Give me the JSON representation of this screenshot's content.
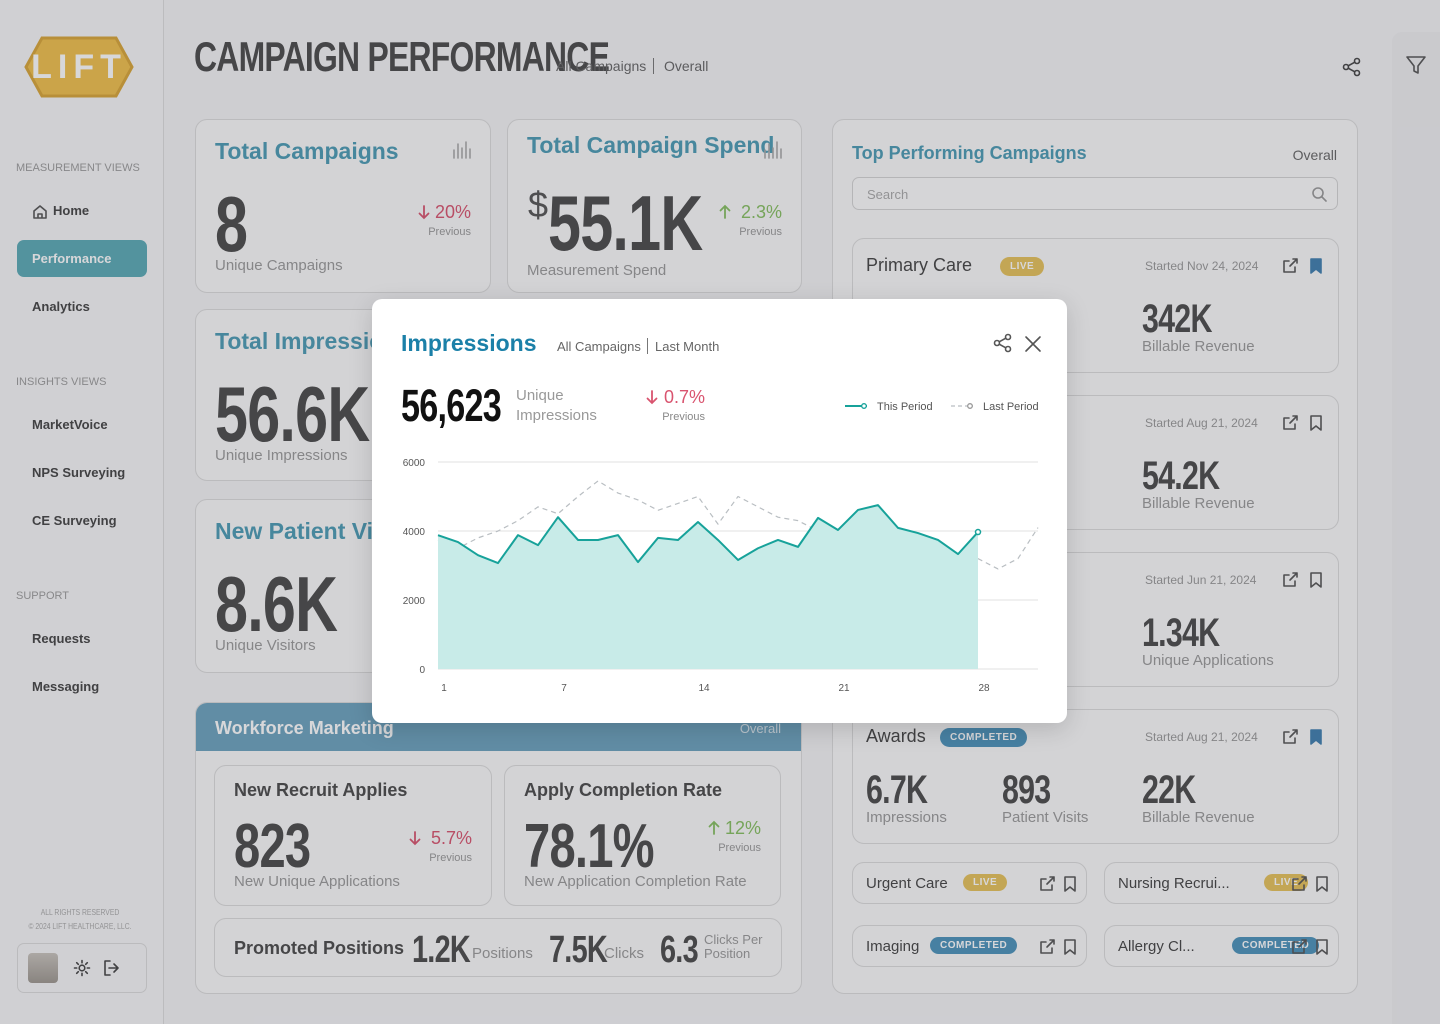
{
  "sidebar": {
    "logo": "LIFT",
    "sections": [
      {
        "title": "MEASUREMENT VIEWS",
        "items": [
          "Home",
          "Performance",
          "Analytics"
        ]
      },
      {
        "title": "INSIGHTS VIEWS",
        "items": [
          "MarketVoice",
          "NPS Surveying",
          "CE Surveying"
        ]
      },
      {
        "title": "SUPPORT",
        "items": [
          "Requests",
          "Messaging"
        ]
      }
    ],
    "active": "Performance",
    "footer": [
      "ALL RIGHTS RESERVED",
      "© 2024 LIFT HEALTHCARE, LLC."
    ]
  },
  "header": {
    "title": "CAMPAIGN PERFORMANCE",
    "filters": [
      "All Campaigns",
      "Overall"
    ]
  },
  "kpis": [
    {
      "title": "Total Campaigns",
      "value": "8",
      "caption": "Unique Campaigns",
      "change": "20%",
      "direction": "down",
      "change_caption": "Previous"
    },
    {
      "title": "Total Campaign Spend",
      "prefix": "$",
      "value": "55.1K",
      "caption": "Measurement Spend",
      "change": "2.3%",
      "direction": "up",
      "change_caption": "Previous"
    },
    {
      "title": "Total Impressions",
      "value": "56.6K",
      "caption": "Unique Impressions"
    },
    {
      "title": "New Patient Visits",
      "value": "8.6K",
      "caption": "Unique Visitors"
    }
  ],
  "workforce": {
    "title": "Workforce Marketing",
    "scope": "Overall",
    "cards": [
      {
        "title": "New Recruit Applies",
        "value": "823",
        "caption": "New Unique Applications",
        "change": "5.7%",
        "direction": "down",
        "change_caption": "Previous"
      },
      {
        "title": "Apply Completion Rate",
        "value": "78.1%",
        "caption": "New Application Completion Rate",
        "change": "12%",
        "direction": "up",
        "change_caption": "Previous"
      }
    ],
    "promoted": {
      "title": "Promoted Positions",
      "metrics": [
        {
          "value": "1.2K",
          "label": "Positions"
        },
        {
          "value": "7.5K",
          "label": "Clicks"
        },
        {
          "value": "6.3",
          "label": "Clicks Per Position"
        }
      ]
    }
  },
  "top": {
    "title": "Top Performing Campaigns",
    "scope": "Overall",
    "search_placeholder": "Search",
    "campaigns": [
      {
        "name": "Primary Care",
        "status": "LIVE",
        "started": "Started Nov 24, 2024",
        "bookmarked": true,
        "metrics": [
          {
            "value": "342K",
            "label": "Billable Revenue"
          }
        ]
      },
      {
        "started": "Started Aug 21, 2024",
        "bookmarked": false,
        "metrics": [
          {
            "value": "54.2K",
            "label": "Billable Revenue"
          }
        ]
      },
      {
        "started": "Started Jun 21, 2024",
        "bookmarked": false,
        "metrics": [
          {
            "value": "1.34K",
            "label": "Unique Applications"
          }
        ]
      },
      {
        "name": "Awards",
        "status": "COMPLETED",
        "started": "Started Aug 21, 2024",
        "bookmarked": true,
        "metrics": [
          {
            "value": "6.7K",
            "label": "Impressions"
          },
          {
            "value": "893",
            "label": "Patient Visits"
          },
          {
            "value": "22K",
            "label": "Billable Revenue"
          }
        ]
      }
    ],
    "small": [
      {
        "name": "Urgent Care",
        "status": "LIVE"
      },
      {
        "name": "Nursing Recrui...",
        "status": "LIVE"
      },
      {
        "name": "Imaging",
        "status": "COMPLETED"
      },
      {
        "name": "Allergy Cl...",
        "status": "COMPLETED"
      }
    ]
  },
  "modal": {
    "title": "Impressions",
    "filters": [
      "All Campaigns",
      "Last Month"
    ],
    "total": "56,623",
    "total_caption": "Unique Impressions",
    "change": "0.7%",
    "direction": "down",
    "change_caption": "Previous"
  },
  "chart_data": {
    "type": "area",
    "x": [
      1,
      2,
      3,
      4,
      5,
      6,
      7,
      8,
      9,
      10,
      11,
      12,
      13,
      14,
      15,
      16,
      17,
      18,
      19,
      20,
      21,
      22,
      23,
      24,
      25,
      26,
      27,
      28,
      29,
      30,
      31
    ],
    "series": [
      {
        "name": "This Period",
        "color": "#17a29a",
        "fill": "#c8ebe8",
        "values": [
          3880,
          3680,
          3300,
          3070,
          3880,
          3590,
          4400,
          3740,
          3740,
          3880,
          3100,
          3800,
          3740,
          4260,
          3740,
          3160,
          3500,
          3740,
          3540,
          4380,
          4030,
          4610,
          4750,
          4090,
          3940,
          3740,
          3330,
          3970,
          null,
          null,
          null
        ]
      },
      {
        "name": "Last Period",
        "color": "#b9bec2",
        "dashed": true,
        "values": [
          3740,
          3500,
          3800,
          4000,
          4300,
          4700,
          4500,
          5000,
          5450,
          5100,
          4900,
          4600,
          4800,
          5000,
          4200,
          5000,
          4700,
          4400,
          4300,
          4000,
          3600,
          3300,
          3700,
          3900,
          3400,
          2400,
          3300,
          3200,
          2900,
          3200,
          4100
        ]
      }
    ],
    "xlim": [
      1,
      31
    ],
    "xticks": [
      1,
      7,
      14,
      21,
      28
    ],
    "ylim": [
      0,
      6000
    ],
    "yticks": [
      0,
      2000,
      4000,
      6000
    ],
    "grid": true,
    "legend": "upper right"
  }
}
